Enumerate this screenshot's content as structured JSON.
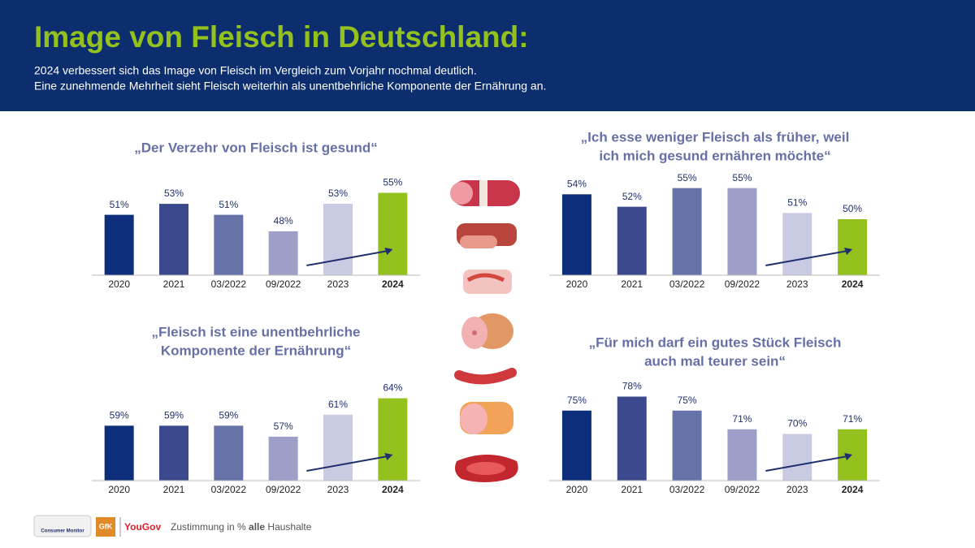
{
  "header": {
    "title": "Image von Fleisch in Deutschland:",
    "subtitle": [
      "2024 verbessert sich das Image von Fleisch im Vergleich zum Vorjahr nochmal deutlich.",
      "Eine zunehmende Mehrheit sieht Fleisch weiterhin als unentbehrliche Komponente der Ernährung an."
    ]
  },
  "footer": {
    "logos": [
      "Consumer Monitor",
      "GfK",
      "YouGov"
    ],
    "note": [
      "Zustimmung in %",
      "alle",
      "Haushalte"
    ]
  },
  "chart_data": [
    {
      "type": "bar",
      "title": [
        "„Der Verzehr von Fleisch ist gesund“"
      ],
      "categories": [
        "2020",
        "2021",
        "03/2022",
        "09/2022",
        "2023",
        "2024"
      ],
      "values": [
        51,
        53,
        51,
        48,
        53,
        55
      ],
      "value_labels": [
        "51%",
        "53%",
        "51%",
        "48%",
        "53%",
        "55%"
      ],
      "colors": [
        "#0d2e7a",
        "#3b4a8c",
        "#6672a8",
        "#9d9fc8",
        "#c9cbe3",
        "#95c11f"
      ],
      "ylim": [
        40,
        57
      ]
    },
    {
      "type": "bar",
      "title": [
        "„Ich esse weniger Fleisch als früher, weil",
        "ich mich gesund ernähren möchte“"
      ],
      "categories": [
        "2020",
        "2021",
        "03/2022",
        "09/2022",
        "2023",
        "2024"
      ],
      "values": [
        54,
        52,
        55,
        55,
        51,
        50
      ],
      "value_labels": [
        "54%",
        "52%",
        "55%",
        "55%",
        "51%",
        "50%"
      ],
      "colors": [
        "#0d2e7a",
        "#3b4a8c",
        "#6672a8",
        "#9d9fc8",
        "#c9cbe3",
        "#95c11f"
      ],
      "ylim": [
        41,
        56
      ]
    },
    {
      "type": "bar",
      "title": [
        "„Fleisch ist eine unentbehrliche",
        "Komponente der Ernährung“"
      ],
      "categories": [
        "2020",
        "2021",
        "03/2022",
        "09/2022",
        "2023",
        "2024"
      ],
      "values": [
        59,
        59,
        59,
        57,
        61,
        64
      ],
      "value_labels": [
        "59%",
        "59%",
        "59%",
        "57%",
        "61%",
        "64%"
      ],
      "colors": [
        "#0d2e7a",
        "#3b4a8c",
        "#6672a8",
        "#9d9fc8",
        "#c9cbe3",
        "#95c11f"
      ],
      "ylim": [
        49,
        66
      ]
    },
    {
      "type": "bar",
      "title": [
        "„Für mich darf ein gutes Stück Fleisch",
        "auch mal teurer sein“"
      ],
      "categories": [
        "2020",
        "2021",
        "03/2022",
        "09/2022",
        "2023",
        "2024"
      ],
      "values": [
        75,
        78,
        75,
        71,
        70,
        71
      ],
      "value_labels": [
        "75%",
        "78%",
        "75%",
        "71%",
        "70%",
        "71%"
      ],
      "colors": [
        "#0d2e7a",
        "#3b4a8c",
        "#6672a8",
        "#9d9fc8",
        "#c9cbe3",
        "#95c11f"
      ],
      "ylim": [
        60,
        80
      ]
    }
  ]
}
